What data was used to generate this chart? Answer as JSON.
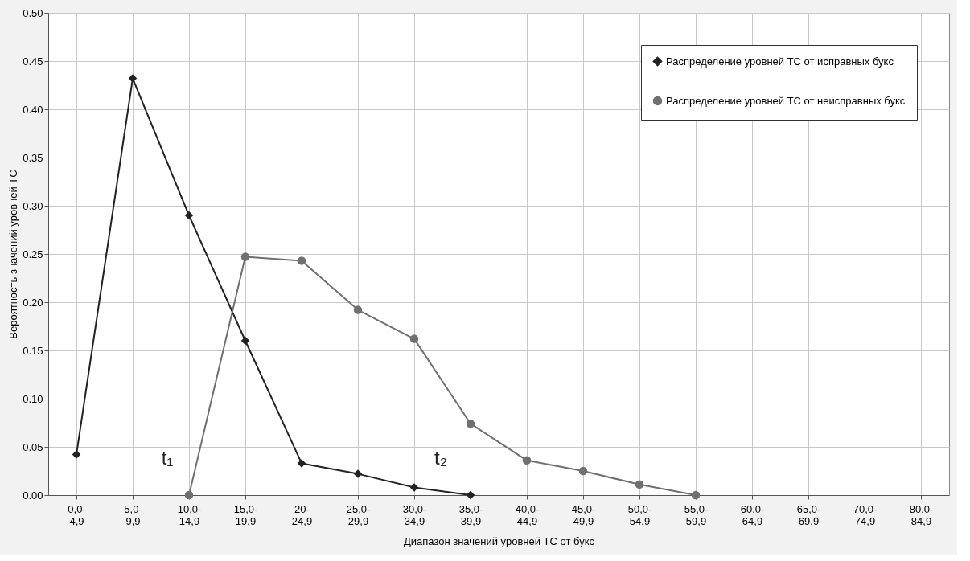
{
  "chart_data": {
    "type": "line",
    "xlabel": "Диапазон значений уровней ТС от букс",
    "ylabel": "Вероятность значений уровней ТС",
    "categories": [
      "0,0-4,9",
      "5,0-9,9",
      "10,0-14,9",
      "15,0-19,9",
      "20-24,9",
      "25,0-29,9",
      "30,0-34,9",
      "35,0-39,9",
      "40,0-44,9",
      "45,0-49,9",
      "50,0-54,9",
      "55,0-59,9",
      "60,0-64,9",
      "65,0-69,9",
      "70,0-74,9",
      "80,0-84,9"
    ],
    "series": [
      {
        "name": "Распределение уровней ТС от исправных букс",
        "color": "#222222",
        "marker": "diamond",
        "values": [
          0.042,
          0.432,
          0.29,
          0.16,
          0.033,
          0.022,
          0.008,
          0.0,
          null,
          null,
          null,
          null,
          null,
          null,
          null,
          null
        ]
      },
      {
        "name": "Распределение уровней ТС от неисправных букс",
        "color": "#707070",
        "marker": "circle",
        "values": [
          null,
          null,
          0.0,
          0.247,
          0.243,
          0.192,
          0.162,
          0.074,
          0.036,
          0.025,
          0.011,
          0.0,
          null,
          null,
          null,
          null
        ]
      }
    ],
    "ylim": [
      0,
      0.5
    ],
    "yticks": [
      {
        "value": 0,
        "label": "0.00"
      },
      {
        "value": 0.05,
        "label": "0.05"
      },
      {
        "value": 0.1,
        "label": "0.10"
      },
      {
        "value": 0.15,
        "label": "0.15"
      },
      {
        "value": 0.2,
        "label": "0.20"
      },
      {
        "value": 0.25,
        "label": "0.25"
      },
      {
        "value": 0.3,
        "label": "0.30"
      },
      {
        "value": 0.35,
        "label": "0.35"
      },
      {
        "value": 0.4,
        "label": "0.40"
      },
      {
        "value": 0.45,
        "label": "0.45"
      },
      {
        "value": 0.5,
        "label": "0.50"
      }
    ],
    "annotations": [
      "t₁",
      "t₂"
    ],
    "grid": true,
    "legend": "top right",
    "line_style": "solid"
  }
}
